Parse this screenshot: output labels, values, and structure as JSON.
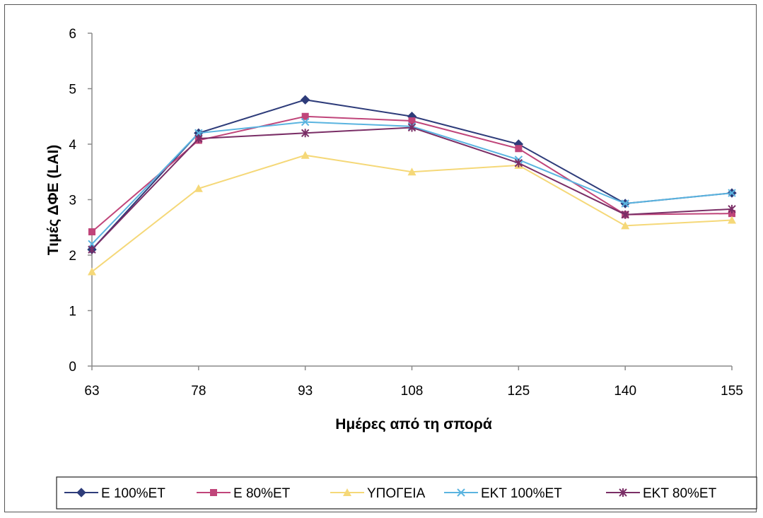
{
  "chart_data": {
    "type": "line",
    "categories": [
      "63",
      "78",
      "93",
      "108",
      "125",
      "140",
      "155"
    ],
    "xlabel": "Ημέρες από τη σπορά",
    "ylabel": "Τιμές ΔΦΕ (LAI)",
    "ylim": [
      0,
      6
    ],
    "yticks": [
      0,
      1,
      2,
      3,
      4,
      5,
      6
    ],
    "grid": false,
    "legend_position": "bottom",
    "series": [
      {
        "name": "Ε 100%ΕΤ",
        "values": [
          2.1,
          4.2,
          4.8,
          4.5,
          4.0,
          2.93,
          3.12
        ],
        "color": "#2e3c7a",
        "marker": "diamond"
      },
      {
        "name": "Ε 80%ΕΤ",
        "values": [
          2.42,
          4.07,
          4.5,
          4.42,
          3.92,
          2.73,
          2.75
        ],
        "color": "#c0457a",
        "marker": "square"
      },
      {
        "name": "ΥΠΟΓΕΙΑ",
        "values": [
          1.7,
          3.2,
          3.8,
          3.5,
          3.62,
          2.53,
          2.63
        ],
        "color": "#f5d878",
        "marker": "triangle"
      },
      {
        "name": "ΕΚΤ 100%ΕΤ",
        "values": [
          2.2,
          4.2,
          4.4,
          4.32,
          3.72,
          2.93,
          3.12
        ],
        "color": "#5ab4e0",
        "marker": "x"
      },
      {
        "name": "ΕΚΤ 80%ΕΤ",
        "values": [
          2.1,
          4.1,
          4.2,
          4.3,
          3.66,
          2.73,
          2.83
        ],
        "color": "#7a2e66",
        "marker": "star"
      }
    ]
  }
}
